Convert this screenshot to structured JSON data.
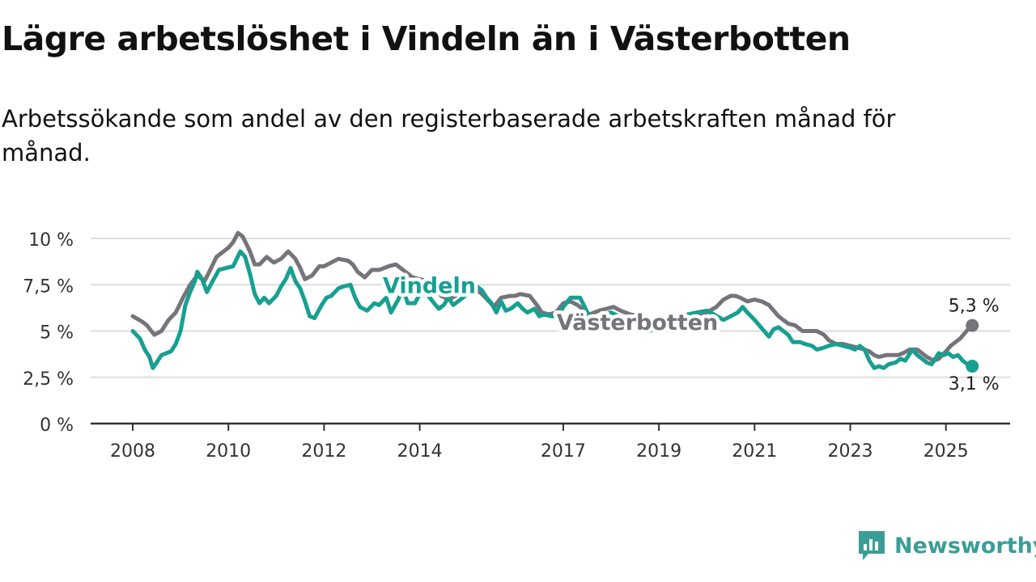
{
  "title": "Lägre arbetslöshet i Vindeln än i Västerbotten",
  "subtitle": "Arbetssökande som andel av den registerbaserade arbetskraften månad för månad.",
  "brand": "Newsworthy",
  "colors": {
    "vindeln": "#17a091",
    "vasterbotten": "#76747a",
    "grid": "#dddddd",
    "axis": "#333333",
    "brand": "#3a9e96"
  },
  "chart_data": {
    "type": "line",
    "title": "Lägre arbetslöshet i Vindeln än i Västerbotten",
    "subtitle": "Arbetssökande som andel av den registerbaserade arbetskraften månad för månad.",
    "ylim": [
      0,
      10
    ],
    "xlim": [
      2008.0,
      2026.5
    ],
    "y_ticks": [
      {
        "value": 0,
        "label": "0 %"
      },
      {
        "value": 2.5,
        "label": "2,5 %"
      },
      {
        "value": 5,
        "label": "5 %"
      },
      {
        "value": 7.5,
        "label": "7,5 %"
      },
      {
        "value": 10,
        "label": "10 %"
      }
    ],
    "x_ticks": [
      {
        "value": 2008,
        "label": "2008"
      },
      {
        "value": 2010,
        "label": "2010"
      },
      {
        "value": 2012,
        "label": "2012"
      },
      {
        "value": 2014,
        "label": "2014"
      },
      {
        "value": 2017,
        "label": "2017"
      },
      {
        "value": 2019,
        "label": "2019"
      },
      {
        "value": 2021,
        "label": "2021"
      },
      {
        "value": 2023,
        "label": "2023"
      },
      {
        "value": 2025,
        "label": "2025"
      }
    ],
    "grid": true,
    "series": [
      {
        "name": "Västerbotten",
        "color": "#76747a",
        "end_label": "5,3 %",
        "points": [
          [
            2008.0,
            5.8
          ],
          [
            2008.2,
            5.5
          ],
          [
            2008.3,
            5.3
          ],
          [
            2008.45,
            4.8
          ],
          [
            2008.6,
            5.0
          ],
          [
            2008.75,
            5.6
          ],
          [
            2008.9,
            6.0
          ],
          [
            2009.05,
            6.8
          ],
          [
            2009.2,
            7.5
          ],
          [
            2009.35,
            8.0
          ],
          [
            2009.5,
            7.7
          ],
          [
            2009.6,
            8.2
          ],
          [
            2009.75,
            9.0
          ],
          [
            2009.9,
            9.3
          ],
          [
            2010.0,
            9.5
          ],
          [
            2010.1,
            9.8
          ],
          [
            2010.2,
            10.3
          ],
          [
            2010.3,
            10.1
          ],
          [
            2010.45,
            9.3
          ],
          [
            2010.55,
            8.6
          ],
          [
            2010.65,
            8.6
          ],
          [
            2010.8,
            9.0
          ],
          [
            2010.95,
            8.7
          ],
          [
            2011.1,
            8.9
          ],
          [
            2011.25,
            9.3
          ],
          [
            2011.4,
            8.9
          ],
          [
            2011.5,
            8.4
          ],
          [
            2011.6,
            7.8
          ],
          [
            2011.75,
            8.0
          ],
          [
            2011.9,
            8.5
          ],
          [
            2012.0,
            8.5
          ],
          [
            2012.15,
            8.7
          ],
          [
            2012.3,
            8.9
          ],
          [
            2012.5,
            8.8
          ],
          [
            2012.6,
            8.6
          ],
          [
            2012.7,
            8.2
          ],
          [
            2012.85,
            7.9
          ],
          [
            2013.0,
            8.3
          ],
          [
            2013.15,
            8.3
          ],
          [
            2013.35,
            8.5
          ],
          [
            2013.5,
            8.6
          ],
          [
            2013.6,
            8.4
          ],
          [
            2013.7,
            8.2
          ],
          [
            2013.85,
            7.9
          ],
          [
            2014.0,
            7.8
          ],
          [
            2014.15,
            7.7
          ],
          [
            2014.35,
            7.3
          ],
          [
            2014.45,
            6.9
          ],
          [
            2014.6,
            6.7
          ],
          [
            2014.75,
            6.9
          ],
          [
            2014.9,
            7.3
          ],
          [
            2015.0,
            7.5
          ],
          [
            2015.2,
            7.2
          ],
          [
            2015.3,
            7.0
          ],
          [
            2015.45,
            6.6
          ],
          [
            2015.55,
            6.3
          ],
          [
            2015.7,
            6.8
          ],
          [
            2015.9,
            6.9
          ],
          [
            2016.0,
            6.9
          ],
          [
            2016.1,
            7.0
          ],
          [
            2016.3,
            6.9
          ],
          [
            2016.45,
            6.4
          ],
          [
            2016.55,
            6.0
          ],
          [
            2016.7,
            5.9
          ],
          [
            2016.85,
            6.0
          ],
          [
            2017.0,
            6.5
          ],
          [
            2017.15,
            6.6
          ],
          [
            2017.3,
            6.4
          ],
          [
            2017.4,
            6.2
          ],
          [
            2017.55,
            5.9
          ],
          [
            2017.75,
            6.1
          ],
          [
            2017.9,
            6.2
          ],
          [
            2018.05,
            6.3
          ],
          [
            2018.2,
            6.1
          ],
          [
            2018.4,
            5.9
          ],
          [
            2018.6,
            5.8
          ],
          [
            2018.8,
            5.6
          ],
          [
            2019.0,
            5.5
          ],
          [
            2019.2,
            5.5
          ],
          [
            2019.4,
            5.6
          ],
          [
            2019.6,
            5.7
          ],
          [
            2019.8,
            5.9
          ],
          [
            2020.0,
            6.0
          ],
          [
            2020.2,
            6.3
          ],
          [
            2020.35,
            6.7
          ],
          [
            2020.5,
            6.9
          ],
          [
            2020.6,
            6.9
          ],
          [
            2020.7,
            6.8
          ],
          [
            2020.85,
            6.6
          ],
          [
            2021.0,
            6.7
          ],
          [
            2021.15,
            6.6
          ],
          [
            2021.3,
            6.4
          ],
          [
            2021.4,
            6.1
          ],
          [
            2021.5,
            5.8
          ],
          [
            2021.6,
            5.6
          ],
          [
            2021.7,
            5.4
          ],
          [
            2021.85,
            5.3
          ],
          [
            2022.0,
            5.0
          ],
          [
            2022.15,
            5.0
          ],
          [
            2022.3,
            5.0
          ],
          [
            2022.45,
            4.8
          ],
          [
            2022.55,
            4.5
          ],
          [
            2022.7,
            4.3
          ],
          [
            2022.85,
            4.3
          ],
          [
            2023.0,
            4.2
          ],
          [
            2023.15,
            4.1
          ],
          [
            2023.3,
            4.0
          ],
          [
            2023.4,
            3.9
          ],
          [
            2023.5,
            3.7
          ],
          [
            2023.6,
            3.6
          ],
          [
            2023.75,
            3.7
          ],
          [
            2023.9,
            3.7
          ],
          [
            2024.0,
            3.7
          ],
          [
            2024.1,
            3.8
          ],
          [
            2024.25,
            4.0
          ],
          [
            2024.4,
            4.0
          ],
          [
            2024.5,
            3.8
          ],
          [
            2024.6,
            3.6
          ],
          [
            2024.75,
            3.4
          ],
          [
            2024.85,
            3.5
          ],
          [
            2025.0,
            3.9
          ],
          [
            2025.1,
            4.2
          ],
          [
            2025.2,
            4.4
          ],
          [
            2025.3,
            4.6
          ],
          [
            2025.4,
            4.9
          ],
          [
            2025.5,
            5.2
          ],
          [
            2025.55,
            5.3
          ]
        ]
      },
      {
        "name": "Vindeln",
        "color": "#17a091",
        "end_label": "3,1 %",
        "points": [
          [
            2008.0,
            5.0
          ],
          [
            2008.15,
            4.6
          ],
          [
            2008.25,
            4.0
          ],
          [
            2008.35,
            3.6
          ],
          [
            2008.42,
            3.0
          ],
          [
            2008.5,
            3.3
          ],
          [
            2008.6,
            3.7
          ],
          [
            2008.7,
            3.8
          ],
          [
            2008.8,
            3.9
          ],
          [
            2008.9,
            4.3
          ],
          [
            2009.0,
            5.0
          ],
          [
            2009.1,
            6.4
          ],
          [
            2009.2,
            7.1
          ],
          [
            2009.3,
            7.7
          ],
          [
            2009.35,
            8.2
          ],
          [
            2009.45,
            7.8
          ],
          [
            2009.55,
            7.1
          ],
          [
            2009.65,
            7.6
          ],
          [
            2009.8,
            8.3
          ],
          [
            2009.95,
            8.4
          ],
          [
            2010.1,
            8.5
          ],
          [
            2010.25,
            9.3
          ],
          [
            2010.35,
            9.0
          ],
          [
            2010.45,
            8.1
          ],
          [
            2010.55,
            7.0
          ],
          [
            2010.65,
            6.5
          ],
          [
            2010.75,
            6.8
          ],
          [
            2010.85,
            6.5
          ],
          [
            2011.0,
            6.9
          ],
          [
            2011.1,
            7.4
          ],
          [
            2011.2,
            7.8
          ],
          [
            2011.3,
            8.4
          ],
          [
            2011.4,
            7.7
          ],
          [
            2011.5,
            7.3
          ],
          [
            2011.6,
            6.6
          ],
          [
            2011.7,
            5.8
          ],
          [
            2011.8,
            5.7
          ],
          [
            2011.95,
            6.4
          ],
          [
            2012.05,
            6.8
          ],
          [
            2012.15,
            6.9
          ],
          [
            2012.3,
            7.3
          ],
          [
            2012.4,
            7.4
          ],
          [
            2012.55,
            7.5
          ],
          [
            2012.65,
            6.8
          ],
          [
            2012.75,
            6.3
          ],
          [
            2012.9,
            6.1
          ],
          [
            2013.05,
            6.5
          ],
          [
            2013.15,
            6.4
          ],
          [
            2013.3,
            6.8
          ],
          [
            2013.4,
            6.0
          ],
          [
            2013.55,
            6.7
          ],
          [
            2013.65,
            7.3
          ],
          [
            2013.75,
            6.5
          ],
          [
            2013.9,
            6.5
          ],
          [
            2014.0,
            7.0
          ],
          [
            2014.15,
            7.0
          ],
          [
            2014.3,
            6.5
          ],
          [
            2014.4,
            6.2
          ],
          [
            2014.5,
            6.4
          ],
          [
            2014.6,
            6.8
          ],
          [
            2014.7,
            6.4
          ],
          [
            2014.8,
            6.6
          ],
          [
            2015.0,
            7.0
          ],
          [
            2015.15,
            7.5
          ],
          [
            2015.3,
            7.2
          ],
          [
            2015.4,
            6.8
          ],
          [
            2015.5,
            6.5
          ],
          [
            2015.6,
            6.0
          ],
          [
            2015.7,
            6.6
          ],
          [
            2015.8,
            6.1
          ],
          [
            2015.9,
            6.2
          ],
          [
            2016.05,
            6.5
          ],
          [
            2016.15,
            6.2
          ],
          [
            2016.25,
            6.0
          ],
          [
            2016.4,
            6.2
          ],
          [
            2016.5,
            5.8
          ],
          [
            2016.6,
            5.9
          ],
          [
            2016.75,
            5.8
          ],
          [
            2016.9,
            5.8
          ],
          [
            2017.0,
            6.3
          ],
          [
            2017.15,
            6.8
          ],
          [
            2017.35,
            6.8
          ],
          [
            2017.45,
            6.3
          ],
          [
            2017.55,
            5.7
          ],
          [
            2017.7,
            5.6
          ],
          [
            2017.85,
            5.9
          ],
          [
            2018.0,
            6.0
          ],
          [
            2018.15,
            5.8
          ],
          [
            2018.3,
            5.5
          ],
          [
            2018.45,
            5.3
          ],
          [
            2018.6,
            5.1
          ],
          [
            2018.8,
            5.0
          ],
          [
            2019.0,
            5.2
          ],
          [
            2019.2,
            5.5
          ],
          [
            2019.4,
            5.7
          ],
          [
            2019.6,
            5.9
          ],
          [
            2019.8,
            6.0
          ],
          [
            2020.0,
            6.1
          ],
          [
            2020.15,
            5.9
          ],
          [
            2020.35,
            5.6
          ],
          [
            2020.5,
            5.8
          ],
          [
            2020.65,
            6.0
          ],
          [
            2020.75,
            6.3
          ],
          [
            2020.85,
            6.0
          ],
          [
            2021.0,
            5.6
          ],
          [
            2021.1,
            5.3
          ],
          [
            2021.2,
            5.0
          ],
          [
            2021.3,
            4.7
          ],
          [
            2021.4,
            5.1
          ],
          [
            2021.5,
            5.2
          ],
          [
            2021.6,
            5.0
          ],
          [
            2021.7,
            4.8
          ],
          [
            2021.8,
            4.4
          ],
          [
            2021.95,
            4.4
          ],
          [
            2022.05,
            4.3
          ],
          [
            2022.2,
            4.2
          ],
          [
            2022.3,
            4.0
          ],
          [
            2022.45,
            4.1
          ],
          [
            2022.55,
            4.2
          ],
          [
            2022.7,
            4.3
          ],
          [
            2022.85,
            4.2
          ],
          [
            2023.0,
            4.1
          ],
          [
            2023.1,
            4.0
          ],
          [
            2023.2,
            4.2
          ],
          [
            2023.3,
            4.0
          ],
          [
            2023.4,
            3.4
          ],
          [
            2023.5,
            3.0
          ],
          [
            2023.6,
            3.1
          ],
          [
            2023.7,
            3.0
          ],
          [
            2023.8,
            3.2
          ],
          [
            2023.95,
            3.3
          ],
          [
            2024.05,
            3.5
          ],
          [
            2024.15,
            3.4
          ],
          [
            2024.3,
            4.0
          ],
          [
            2024.4,
            3.7
          ],
          [
            2024.5,
            3.5
          ],
          [
            2024.6,
            3.3
          ],
          [
            2024.7,
            3.2
          ],
          [
            2024.85,
            3.8
          ],
          [
            2024.95,
            3.7
          ],
          [
            2025.05,
            3.8
          ],
          [
            2025.15,
            3.6
          ],
          [
            2025.25,
            3.7
          ],
          [
            2025.35,
            3.4
          ],
          [
            2025.45,
            3.2
          ],
          [
            2025.55,
            3.1
          ]
        ]
      }
    ],
    "annotations": [
      {
        "text": "Vindeln",
        "series": "Vindeln",
        "at_x": 2014.2,
        "at_y": 7.5
      },
      {
        "text": "Västerbotten",
        "series": "Västerbotten",
        "at_x": 2018.55,
        "at_y": 5.5
      }
    ]
  }
}
